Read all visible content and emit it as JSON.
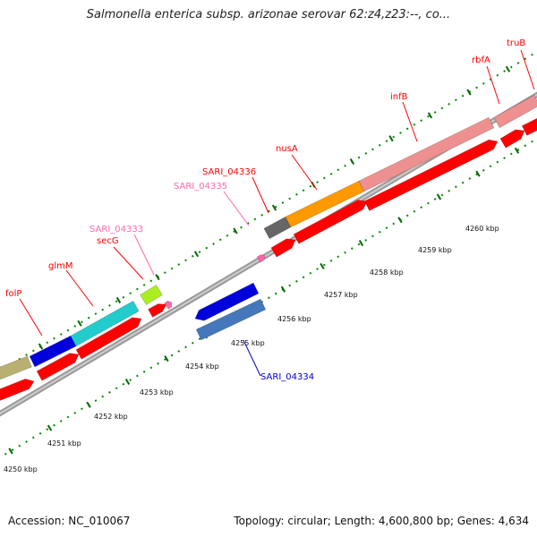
{
  "title": "Salmonella enterica subsp. arizonae serovar 62:z4,z23:--, co...",
  "footer": {
    "accession": "Accession: NC_010067",
    "info": "Topology: circular; Length: 4,600,800 bp; Genes: 4,634"
  },
  "colors": {
    "red": "#ff0000",
    "pink": "#ff66aa",
    "blue": "#0000cc",
    "cornflower": "#3366cc",
    "dotted": "#007700",
    "tick": "#006600",
    "backbone": "#888888"
  },
  "kbp_labels": [
    "4250 kbp",
    "4251 kbp",
    "4252 kbp",
    "4253 kbp",
    "4254 kbp",
    "4255 kbp",
    "4256 kbp",
    "4257 kbp",
    "4258 kbp",
    "4259 kbp",
    "4260 kbp"
  ],
  "gene_labels": [
    {
      "id": "folP",
      "text": "folP",
      "color": "red"
    },
    {
      "id": "glmM",
      "text": "glmM",
      "color": "red"
    },
    {
      "id": "secG",
      "text": "secG",
      "color": "red"
    },
    {
      "id": "SARI_04333",
      "text": "SARI_04333",
      "color": "pink"
    },
    {
      "id": "SARI_04335",
      "text": "SARI_04335",
      "color": "pink"
    },
    {
      "id": "SARI_04336",
      "text": "SARI_04336",
      "color": "red"
    },
    {
      "id": "nusA",
      "text": "nusA",
      "color": "red"
    },
    {
      "id": "infB",
      "text": "infB",
      "color": "red"
    },
    {
      "id": "rbfA",
      "text": "rbfA",
      "color": "red"
    },
    {
      "id": "truB",
      "text": "truB",
      "color": "red"
    },
    {
      "id": "SARI_04334",
      "text": "SARI_04334",
      "color": "blue"
    }
  ],
  "features": [
    {
      "id": "olive-cog",
      "color": "#b8b070"
    },
    {
      "id": "folP-cog",
      "color": "#0000dd"
    },
    {
      "id": "glmM-cog",
      "color": "#22cccc"
    },
    {
      "id": "secG-cog",
      "color": "#aaee22"
    },
    {
      "id": "SARI_04336-cog",
      "color": "#666666"
    },
    {
      "id": "nusA-cog",
      "color": "#ff9900"
    },
    {
      "id": "infB-cog",
      "color": "#ee9090"
    },
    {
      "id": "rbfA-cog",
      "color": "#ee9090"
    },
    {
      "id": "SARI_04334-cog-blue",
      "color": "#0000dd"
    },
    {
      "id": "SARI_04334-cog-steel",
      "color": "#4477bb"
    }
  ]
}
